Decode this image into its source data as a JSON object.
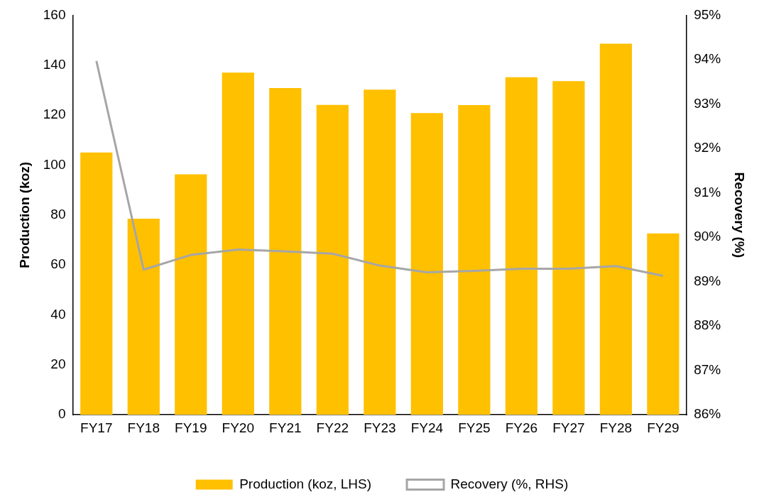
{
  "chart_data": {
    "type": "bar",
    "categories": [
      "FY17",
      "FY18",
      "FY19",
      "FY20",
      "FY21",
      "FY22",
      "FY23",
      "FY24",
      "FY25",
      "FY26",
      "FY27",
      "FY28",
      "FY29"
    ],
    "series": [
      {
        "name": "Production (koz, LHS)",
        "color": "#ffc000",
        "values": [
          105,
          78.5,
          96.3,
          137,
          130.8,
          124.1,
          130.2,
          120.8,
          124,
          135.2,
          133.6,
          148.6,
          72.6
        ]
      },
      {
        "name": "Recovery (%, RHS)",
        "type": "line",
        "axis": "y2",
        "color": "#a6a6a6",
        "values": [
          93.97,
          89.27,
          89.6,
          89.72,
          89.68,
          89.63,
          89.36,
          89.21,
          89.24,
          89.29,
          89.29,
          89.35,
          89.13
        ]
      }
    ],
    "ylabel": "Production (koz)",
    "y2label": "Recovery (%)",
    "ylim": [
      0,
      160
    ],
    "yticks": [
      0,
      20,
      40,
      60,
      80,
      100,
      120,
      140,
      160
    ],
    "y2lim": [
      86,
      95
    ],
    "y2ticks": [
      {
        "value": 86,
        "label": "86%"
      },
      {
        "value": 87,
        "label": "87%"
      },
      {
        "value": 88,
        "label": "88%"
      },
      {
        "value": 89,
        "label": "89%"
      },
      {
        "value": 90,
        "label": "90%"
      },
      {
        "value": 91,
        "label": "91%"
      },
      {
        "value": 92,
        "label": "92%"
      },
      {
        "value": 93,
        "label": "93%"
      },
      {
        "value": 94,
        "label": "94%"
      },
      {
        "value": 95,
        "label": "95%"
      }
    ],
    "legend": "bottom",
    "marker": "none"
  }
}
